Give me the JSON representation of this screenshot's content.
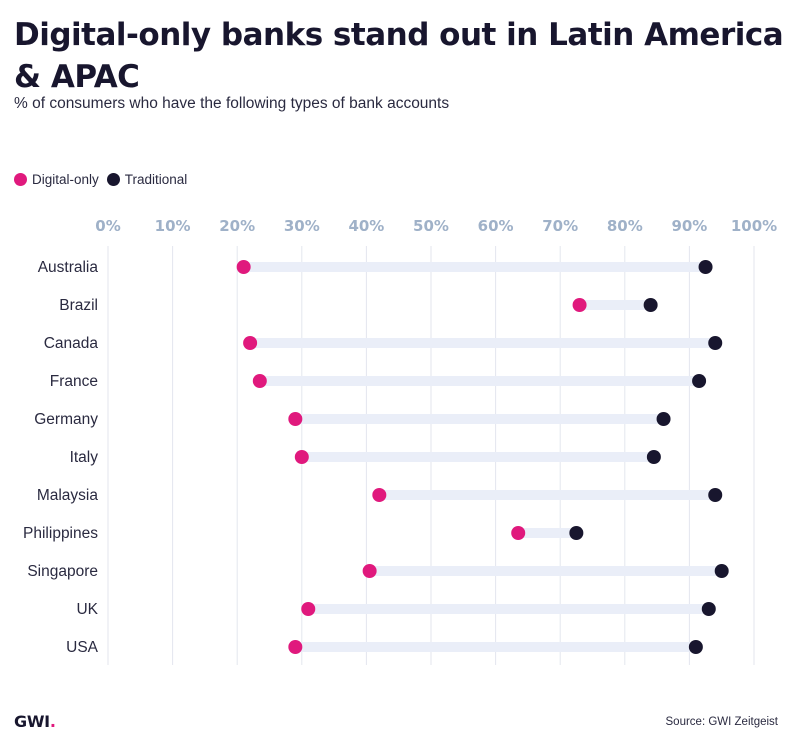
{
  "header": {
    "title": "Digital-only banks stand out in Latin America & APAC",
    "subtitle": "% of consumers who have the following types of bank accounts"
  },
  "legend": {
    "digital_label": "Digital-only",
    "traditional_label": "Traditional"
  },
  "colors": {
    "digital": "#e0197d",
    "traditional": "#18162e",
    "bar": "#eaeef8",
    "grid": "#e3e6ee",
    "tick": "#9fb1c8"
  },
  "footer": {
    "logo_text": "GWI",
    "logo_dot": ".",
    "source": "Source: GWI Zeitgeist"
  },
  "chart_data": {
    "type": "dumbbell",
    "title": "Digital-only banks stand out in Latin America & APAC",
    "subtitle": "% of consumers who have the following types of bank accounts",
    "xlabel": "",
    "ylabel": "",
    "xlim": [
      0,
      100
    ],
    "x_ticks": [
      "0%",
      "10%",
      "20%",
      "30%",
      "40%",
      "50%",
      "60%",
      "70%",
      "80%",
      "90%",
      "100%"
    ],
    "x_tick_values": [
      0,
      10,
      20,
      30,
      40,
      50,
      60,
      70,
      80,
      90,
      100
    ],
    "grid": true,
    "legend_position": "top-left",
    "categories": [
      "Australia",
      "Brazil",
      "Canada",
      "France",
      "Germany",
      "Italy",
      "Malaysia",
      "Philippines",
      "Singapore",
      "UK",
      "USA"
    ],
    "series": [
      {
        "name": "Digital-only",
        "values": [
          21,
          73,
          22,
          23.5,
          29,
          30,
          42,
          63.5,
          40.5,
          31,
          29
        ]
      },
      {
        "name": "Traditional",
        "values": [
          92.5,
          84,
          94,
          91.5,
          86,
          84.5,
          94,
          72.5,
          95,
          93,
          91
        ]
      }
    ]
  }
}
